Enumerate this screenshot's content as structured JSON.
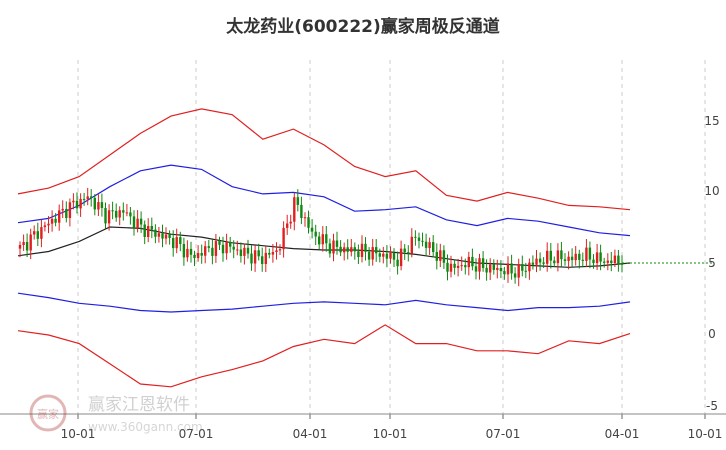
{
  "chart_data": {
    "type": "candlestick",
    "title": "太龙药业(600222)赢家周极反通道",
    "x_ticks": [
      "10-01",
      "07-01",
      "04-01",
      "10-01",
      "07-01",
      "04-01",
      "10-01"
    ],
    "y_ticks": [
      "15",
      "10",
      "5",
      "0",
      "-5"
    ],
    "ylim": [
      -5,
      17
    ],
    "grid": "vertical dashed",
    "series": [
      {
        "role": "outer-upper",
        "color": "#e02020",
        "values": [
          9.8,
          10.2,
          11.0,
          12.5,
          14.0,
          15.2,
          15.7,
          15.3,
          13.6,
          14.3,
          13.2,
          11.7,
          11.0,
          11.4,
          9.7,
          9.3,
          9.9,
          9.5,
          9.0,
          8.9,
          8.7
        ]
      },
      {
        "role": "inner-upper",
        "color": "#2020e0",
        "values": [
          7.8,
          8.1,
          9.0,
          10.3,
          11.4,
          11.8,
          11.5,
          10.3,
          9.8,
          9.9,
          9.6,
          8.6,
          8.7,
          8.9,
          8.0,
          7.6,
          8.1,
          7.9,
          7.5,
          7.1,
          6.9
        ]
      },
      {
        "role": "middle",
        "color": "#222222",
        "values": [
          5.5,
          5.8,
          6.5,
          7.5,
          7.4,
          7.0,
          6.8,
          6.4,
          6.2,
          6.0,
          5.9,
          5.9,
          5.8,
          5.6,
          5.3,
          5.0,
          4.9,
          4.8,
          4.7,
          4.8,
          5.0
        ]
      },
      {
        "role": "inner-lower",
        "color": "#2020e0",
        "values": [
          2.9,
          2.6,
          2.2,
          2.0,
          1.7,
          1.6,
          1.7,
          1.8,
          2.0,
          2.2,
          2.3,
          2.2,
          2.1,
          2.4,
          2.1,
          1.9,
          1.7,
          1.9,
          1.9,
          2.0,
          2.3
        ]
      },
      {
        "role": "outer-lower",
        "color": "#e02020",
        "values": [
          0.3,
          0.0,
          -0.6,
          -2.0,
          -3.4,
          -3.6,
          -2.9,
          -2.4,
          -1.8,
          -0.8,
          -0.3,
          -0.6,
          0.7,
          -0.6,
          -0.6,
          -1.1,
          -1.1,
          -1.3,
          -0.4,
          -0.6,
          0.1
        ]
      }
    ],
    "price_series": {
      "up_color": "#e02020",
      "down_color": "#118811",
      "closes": [
        6.0,
        7.1,
        8.1,
        9.0,
        9.6,
        8.3,
        8.6,
        7.5,
        7.0,
        6.5,
        5.4,
        6.0,
        6.2,
        5.7,
        5.3,
        5.9,
        9.3,
        7.0,
        6.2,
        5.9,
        5.8,
        5.6,
        5.2,
        6.8,
        5.9,
        4.6,
        5.0,
        4.7,
        4.5,
        4.4,
        5.1,
        5.4,
        5.3,
        5.5,
        5.1,
        5.2
      ]
    }
  },
  "watermark": {
    "logo_text": "赢家",
    "brand": "赢家江恩软件",
    "url": "www.360gann.com"
  }
}
